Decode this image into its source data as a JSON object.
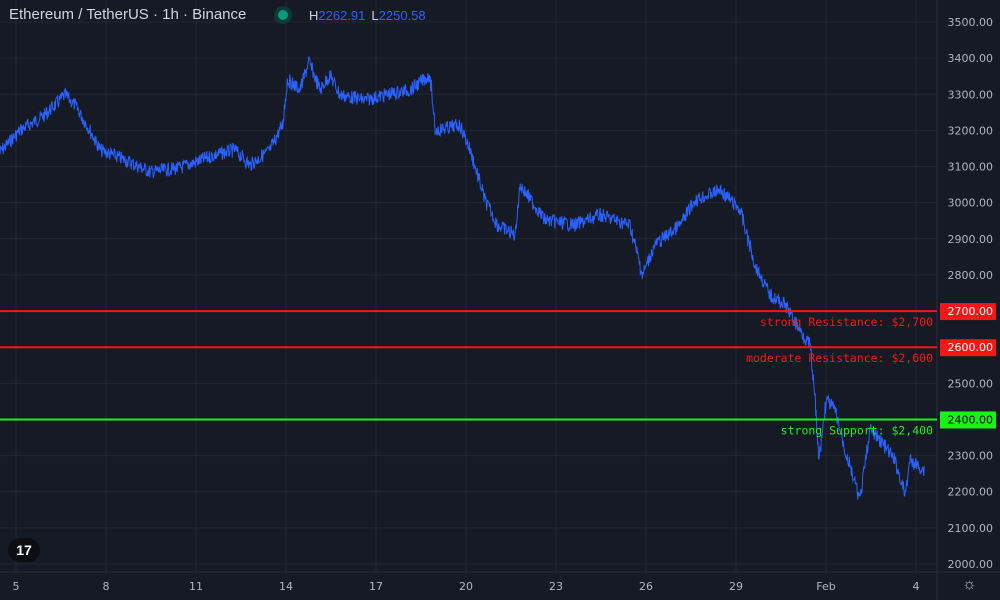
{
  "header": {
    "title": "Ethereum / TetherUS · 1h · Binance",
    "high_label": "H",
    "high": "2262.91",
    "low_label": "L",
    "low": "2250.58",
    "status_color": "#089981"
  },
  "chart_data": {
    "type": "line",
    "ylim": [
      2000,
      3500
    ],
    "yticks": [
      "3500.00",
      "3400.00",
      "3300.00",
      "3200.00",
      "3100.00",
      "3000.00",
      "2900.00",
      "2800.00",
      "2700.00",
      "2600.00",
      "2500.00",
      "2400.00",
      "2300.00",
      "2200.00",
      "2100.00",
      "2000.00"
    ],
    "xticks": [
      {
        "label": "5",
        "t": "01-05T00"
      },
      {
        "label": "8",
        "t": "01-08T00"
      },
      {
        "label": "11",
        "t": "01-11T00"
      },
      {
        "label": "14",
        "t": "01-14T00"
      },
      {
        "label": "17",
        "t": "01-17T00"
      },
      {
        "label": "20",
        "t": "01-20T00"
      },
      {
        "label": "23",
        "t": "01-23T00"
      },
      {
        "label": "26",
        "t": "01-26T00"
      },
      {
        "label": "29",
        "t": "01-29T00"
      },
      {
        "label": "Feb",
        "t": "02-01T00"
      },
      {
        "label": "4",
        "t": "02-04T00"
      }
    ],
    "series_color": "#2962ff",
    "points": [
      [
        "01-04T11",
        3140
      ],
      [
        "01-05T03",
        3200
      ],
      [
        "01-05T23",
        3243
      ],
      [
        "01-06T15",
        3298
      ],
      [
        "01-06T23",
        3270
      ],
      [
        "01-07T11",
        3200
      ],
      [
        "01-07T19",
        3146
      ],
      [
        "01-08T15",
        3118
      ],
      [
        "01-09T11",
        3085
      ],
      [
        "01-10T11",
        3096
      ],
      [
        "01-11T15",
        3132
      ],
      [
        "01-12T07",
        3146
      ],
      [
        "01-12T19",
        3104
      ],
      [
        "01-13T11",
        3146
      ],
      [
        "01-13T21",
        3215
      ],
      [
        "01-14T01",
        3340
      ],
      [
        "01-14T11",
        3312
      ],
      [
        "01-14T18",
        3390
      ],
      [
        "01-15T03",
        3312
      ],
      [
        "01-15T11",
        3353
      ],
      [
        "01-15T19",
        3298
      ],
      [
        "01-16T15",
        3284
      ],
      [
        "01-17T07",
        3298
      ],
      [
        "01-18T03",
        3312
      ],
      [
        "01-18T19",
        3353
      ],
      [
        "01-18T23",
        3200
      ],
      [
        "01-19T19",
        3215
      ],
      [
        "01-20T03",
        3146
      ],
      [
        "01-20T15",
        3007
      ],
      [
        "01-21T01",
        2938
      ],
      [
        "01-21T15",
        2910
      ],
      [
        "01-21T19",
        3049
      ],
      [
        "01-22T15",
        2952
      ],
      [
        "01-23T15",
        2938
      ],
      [
        "01-24T11",
        2966
      ],
      [
        "01-25T11",
        2938
      ],
      [
        "01-25T21",
        2800
      ],
      [
        "01-26T07",
        2883
      ],
      [
        "01-27T03",
        2938
      ],
      [
        "01-27T15",
        3007
      ],
      [
        "01-28T11",
        3035
      ],
      [
        "01-29T03",
        2980
      ],
      [
        "01-29T15",
        2827
      ],
      [
        "01-30T03",
        2744
      ],
      [
        "01-30T15",
        2717
      ],
      [
        "01-31T03",
        2647
      ],
      [
        "01-31T11",
        2606
      ],
      [
        "01-31T15",
        2454
      ],
      [
        "01-31T18",
        2287
      ],
      [
        "02-01T00",
        2454
      ],
      [
        "02-01T07",
        2426
      ],
      [
        "02-01T15",
        2315
      ],
      [
        "02-02T03",
        2177
      ],
      [
        "02-02T11",
        2371
      ],
      [
        "02-02T19",
        2343
      ],
      [
        "02-03T07",
        2287
      ],
      [
        "02-03T15",
        2190
      ],
      [
        "02-03T19",
        2287
      ],
      [
        "02-04T07",
        2259
      ]
    ],
    "levels": [
      {
        "price": 2700,
        "axis_label": "2700.00",
        "label": "strong Resistance: $2,700",
        "color": "#f21818"
      },
      {
        "price": 2600,
        "axis_label": "2600.00",
        "label": "moderate Resistance: $2,600",
        "color": "#f21818"
      },
      {
        "price": 2400,
        "axis_label": "2400.00",
        "label": "strong Support: $2,400",
        "color": "#18f218"
      }
    ]
  },
  "logo": "TV",
  "settings_icon": "gear-icon"
}
